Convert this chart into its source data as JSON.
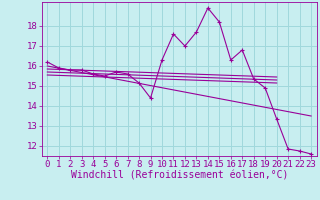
{
  "xlabel": "Windchill (Refroidissement éolien,°C)",
  "bg_color": "#c8eef0",
  "grid_color": "#a0d8dc",
  "line_color": "#990099",
  "xlim": [
    -0.5,
    23.5
  ],
  "ylim": [
    11.5,
    19.2
  ],
  "xticks": [
    0,
    1,
    2,
    3,
    4,
    5,
    6,
    7,
    8,
    9,
    10,
    11,
    12,
    13,
    14,
    15,
    16,
    17,
    18,
    19,
    20,
    21,
    22,
    23
  ],
  "yticks": [
    12,
    13,
    14,
    15,
    16,
    17,
    18
  ],
  "line1_x": [
    0,
    1,
    2,
    3,
    4,
    5,
    6,
    7,
    8,
    9,
    10,
    11,
    12,
    13,
    14,
    15,
    16,
    17,
    18,
    19,
    20,
    21,
    22,
    23
  ],
  "line1_y": [
    16.2,
    15.9,
    15.8,
    15.8,
    15.6,
    15.5,
    15.7,
    15.6,
    15.15,
    14.4,
    16.3,
    17.6,
    17.0,
    17.7,
    18.9,
    18.2,
    16.3,
    16.8,
    15.35,
    14.9,
    13.35,
    11.85,
    11.75,
    11.6
  ],
  "line2_x": [
    0,
    20
  ],
  "line2_y": [
    15.85,
    15.45
  ],
  "line3_x": [
    0,
    20
  ],
  "line3_y": [
    15.7,
    15.3
  ],
  "line4_x": [
    0,
    20
  ],
  "line4_y": [
    15.55,
    15.15
  ],
  "line5_x": [
    0,
    23
  ],
  "line5_y": [
    16.0,
    13.5
  ],
  "tick_fontsize": 6.5,
  "label_fontsize": 7
}
